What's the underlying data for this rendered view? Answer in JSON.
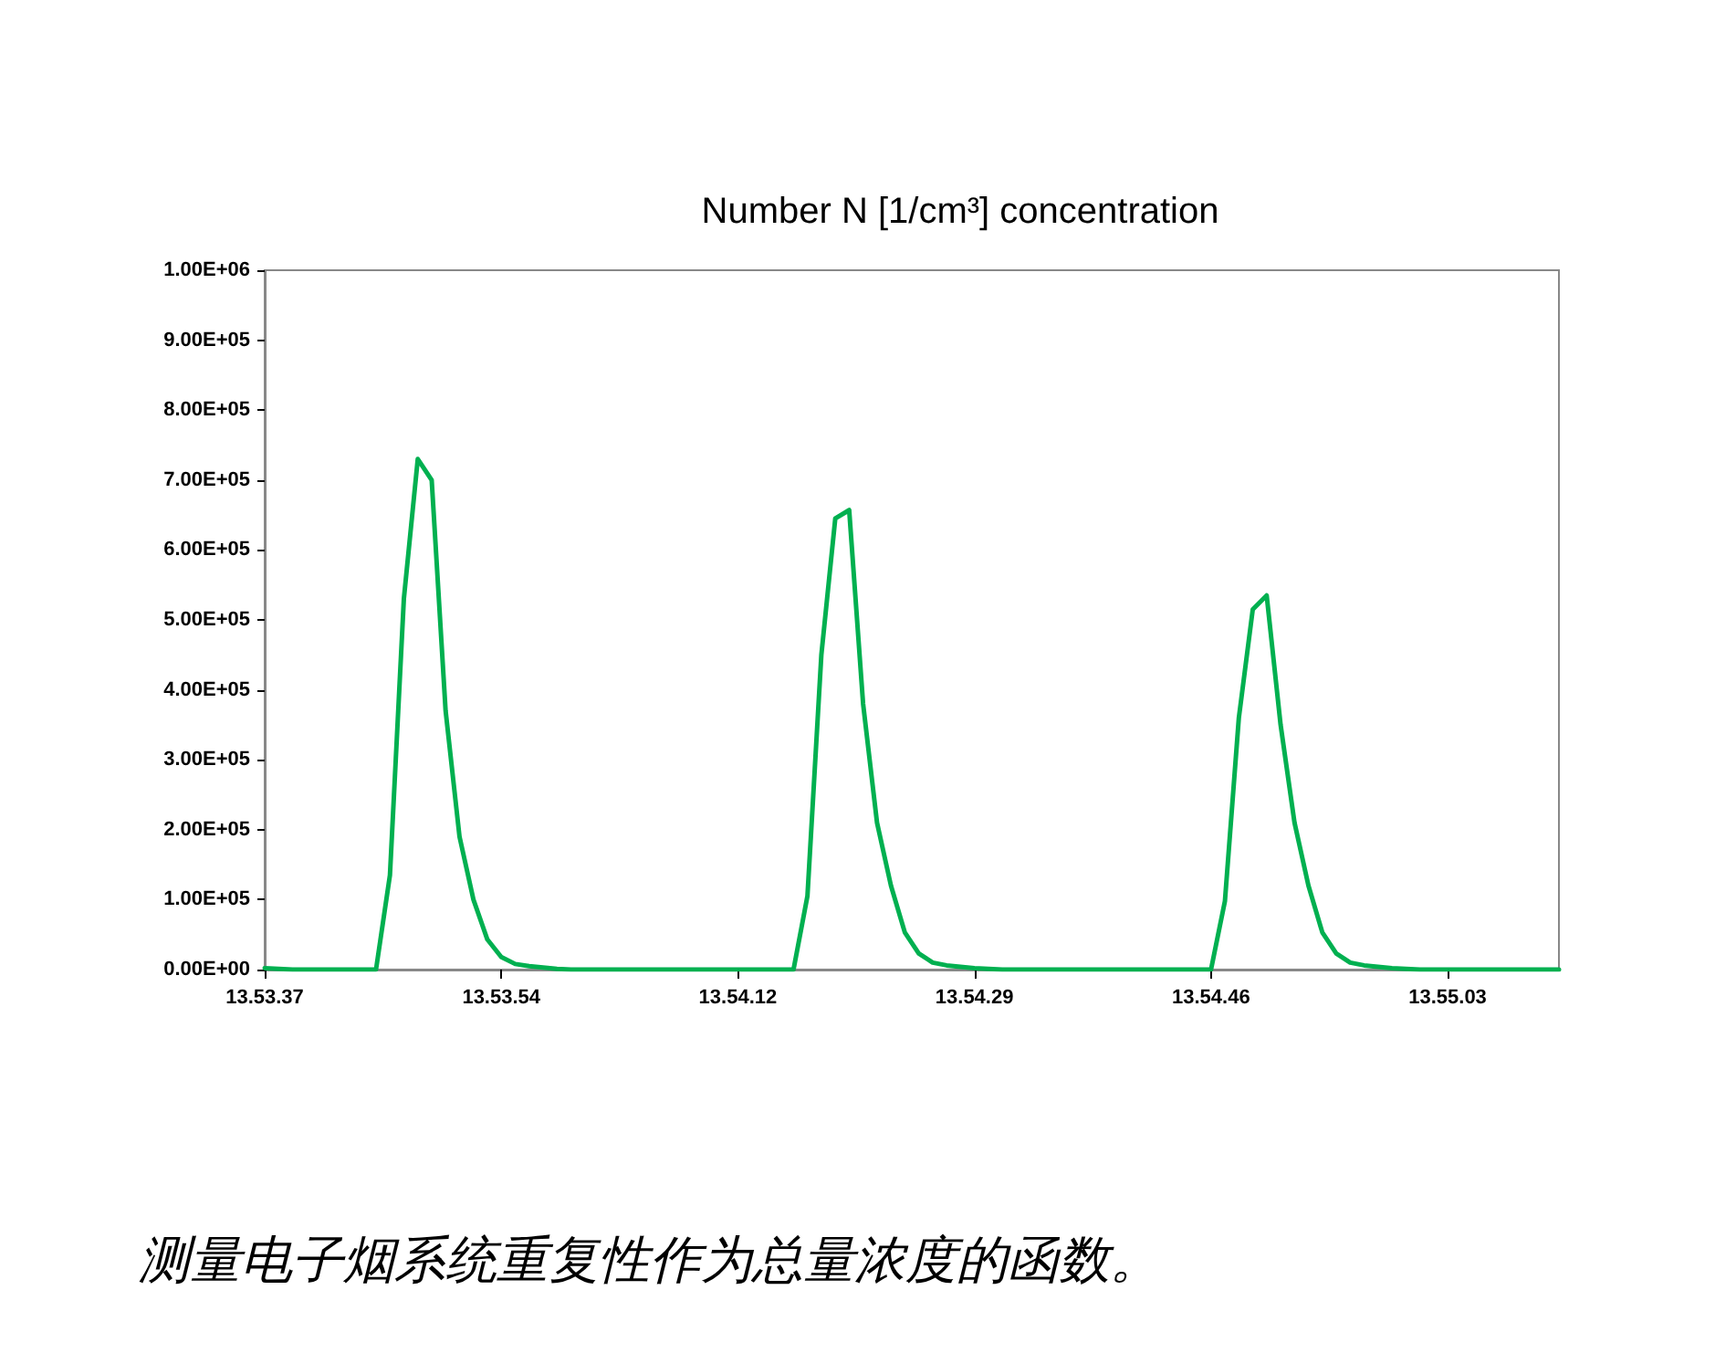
{
  "chart_data": {
    "type": "line",
    "title": "Number N [1/cm³] concentration",
    "annotations": [
      "测量电子烟系统重复性作为总量浓度的函数。"
    ],
    "categories": [
      "13.53.37",
      null,
      null,
      null,
      null,
      null,
      null,
      null,
      null,
      null,
      null,
      null,
      null,
      null,
      null,
      null,
      null,
      "13.53.54",
      null,
      null,
      null,
      null,
      null,
      null,
      null,
      null,
      null,
      null,
      null,
      null,
      null,
      null,
      null,
      null,
      "13.54.12",
      null,
      null,
      null,
      null,
      null,
      null,
      null,
      null,
      null,
      null,
      null,
      null,
      null,
      null,
      null,
      null,
      "13.54.29",
      null,
      null,
      null,
      null,
      null,
      null,
      null,
      null,
      null,
      null,
      null,
      null,
      null,
      null,
      null,
      null,
      "13.54.46",
      null,
      null,
      null,
      null,
      null,
      null,
      null,
      null,
      null,
      null,
      null,
      null,
      null,
      null,
      null,
      null,
      "13.55.03",
      null,
      null,
      null,
      null,
      null,
      null,
      null,
      null
    ],
    "series": [
      {
        "color": "#00b050",
        "values": [
          2000,
          1000,
          0,
          0,
          0,
          0,
          0,
          0,
          0,
          135000,
          530000,
          730000,
          700000,
          370000,
          190000,
          100000,
          43000,
          18000,
          8000,
          5000,
          3000,
          1000,
          0,
          0,
          0,
          0,
          0,
          0,
          0,
          0,
          0,
          0,
          0,
          0,
          0,
          0,
          0,
          0,
          0,
          105000,
          450000,
          645000,
          657000,
          380000,
          210000,
          120000,
          53000,
          23000,
          10000,
          6000,
          4000,
          2000,
          1000,
          0,
          0,
          0,
          0,
          0,
          0,
          0,
          0,
          0,
          0,
          0,
          0,
          0,
          0,
          0,
          0,
          98000,
          360000,
          515000,
          535000,
          350000,
          210000,
          120000,
          53000,
          23000,
          10000,
          6000,
          4000,
          2000,
          1000,
          0,
          0,
          0,
          0,
          0,
          0,
          0,
          0,
          0,
          0,
          0
        ]
      }
    ],
    "ylim": [
      0,
      1000000
    ],
    "yticks": [
      {
        "value": 0,
        "label": "0.00E+00"
      },
      {
        "value": 100000,
        "label": "1.00E+05"
      },
      {
        "value": 200000,
        "label": "2.00E+05"
      },
      {
        "value": 300000,
        "label": "3.00E+05"
      },
      {
        "value": 400000,
        "label": "4.00E+05"
      },
      {
        "value": 500000,
        "label": "5.00E+05"
      },
      {
        "value": 600000,
        "label": "6.00E+05"
      },
      {
        "value": 700000,
        "label": "7.00E+05"
      },
      {
        "value": 800000,
        "label": "8.00E+05"
      },
      {
        "value": 900000,
        "label": "9.00E+05"
      },
      {
        "value": 1000000,
        "label": "1.00E+06"
      }
    ],
    "grid": false,
    "marker": "none",
    "line_style": "solid"
  }
}
